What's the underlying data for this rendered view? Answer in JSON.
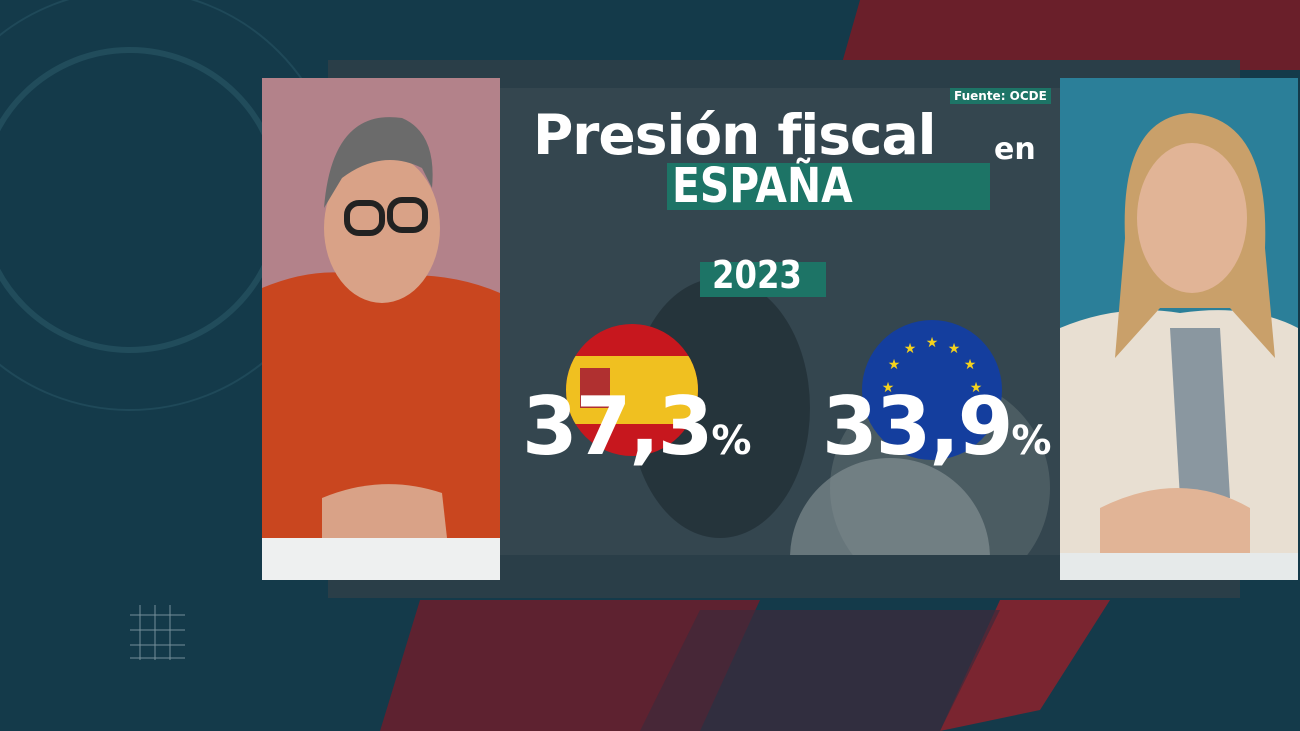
{
  "graphic": {
    "source": "Fuente: OCDE",
    "title": "Presión fiscal",
    "title_suffix": "en",
    "subtitle": "ESPAÑA",
    "year": "2023",
    "items": [
      {
        "value": "37,3",
        "unit": "%"
      },
      {
        "value": "33,9",
        "unit": "%"
      }
    ]
  }
}
